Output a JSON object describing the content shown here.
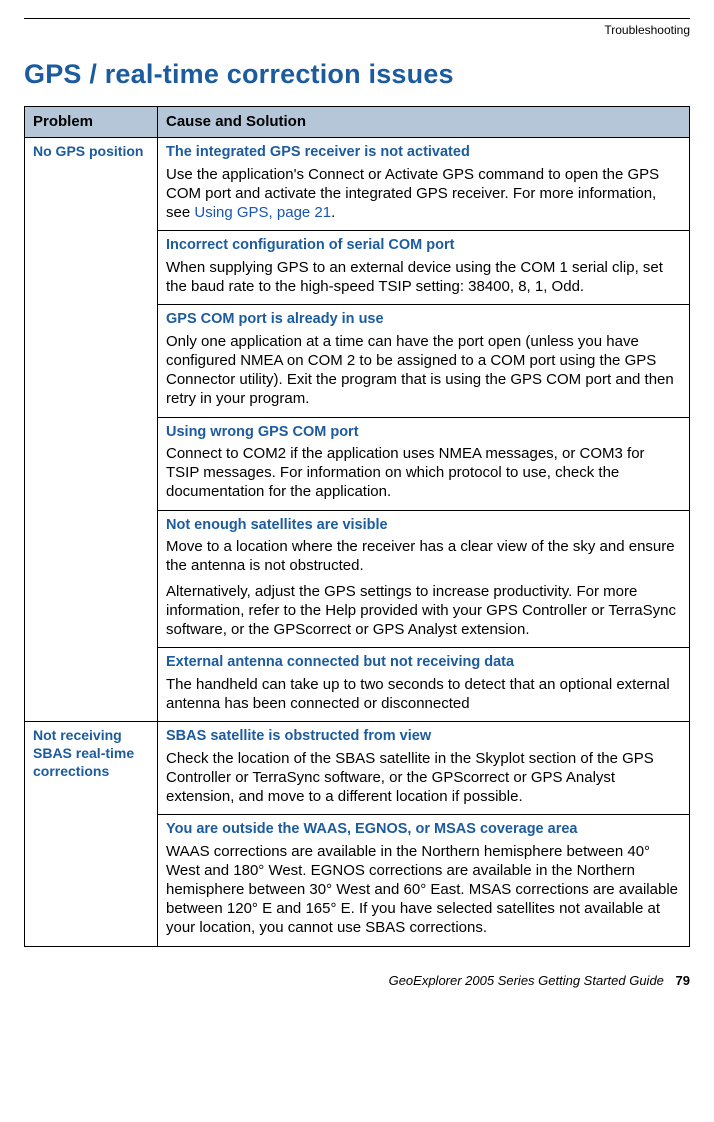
{
  "header": {
    "label": "Troubleshooting"
  },
  "section_title": "GPS / real-time correction issues",
  "colors": {
    "accent": "#1b5b9e",
    "header_bg": "#b4c6d8",
    "link": "#1955b3",
    "border": "#000000",
    "text": "#000000"
  },
  "table": {
    "col_problem": "Problem",
    "col_solution": "Cause and Solution",
    "groups": [
      {
        "problem": "No GPS position",
        "causes": [
          {
            "heading": "The integrated GPS receiver is not activated",
            "body_pre": "Use the application's Connect or Activate GPS command to open the GPS COM port and activate the integrated GPS receiver. For more information, see ",
            "link": "Using GPS, page 21",
            "body_post": "."
          },
          {
            "heading": "Incorrect configuration of serial COM port",
            "body": "When supplying GPS to an external device using the COM 1 serial clip, set the baud rate to the high-speed TSIP setting: 38400, 8, 1, Odd."
          },
          {
            "heading": "GPS COM port is already in use",
            "body": "Only one application at a time can have the port open (unless you have configured NMEA on COM 2 to be assigned to a COM port using the GPS Connector utility). Exit the program that is using the GPS COM port and then retry in your program."
          },
          {
            "heading": "Using wrong GPS COM port",
            "body": "Connect to COM2 if the application uses NMEA messages, or COM3 for TSIP messages. For information on which protocol to use, check the documentation for the application."
          },
          {
            "heading": "Not enough satellites are visible",
            "body": "Move to a location where the receiver has a clear view of the sky and ensure the antenna is not obstructed.",
            "body2": "Alternatively, adjust the GPS settings to increase productivity. For more information, refer to the Help provided with your GPS Controller or TerraSync software, or the GPScorrect or GPS Analyst extension."
          },
          {
            "heading": "External antenna connected but not receiving data",
            "body": "The handheld can take up to two seconds to detect that an optional external antenna has been connected or disconnected"
          }
        ]
      },
      {
        "problem": "Not receiving SBAS real-time corrections",
        "causes": [
          {
            "heading": "SBAS satellite is obstructed from view",
            "body": "Check the location of the SBAS satellite in the Skyplot section of the GPS Controller or TerraSync software, or the GPScorrect or GPS Analyst extension, and move to a different location if possible."
          },
          {
            "heading": "You are outside the WAAS, EGNOS, or MSAS coverage area",
            "body": "WAAS corrections are available in the Northern hemisphere between 40° West and 180° West. EGNOS corrections are available in the Northern hemisphere between 30° West and 60° East. MSAS corrections are available between 120° E and 165° E. If you have selected satellites not available at your location, you cannot use SBAS corrections."
          }
        ]
      }
    ]
  },
  "footer": {
    "guide": "GeoExplorer 2005 Series Getting Started Guide",
    "page": "79"
  }
}
